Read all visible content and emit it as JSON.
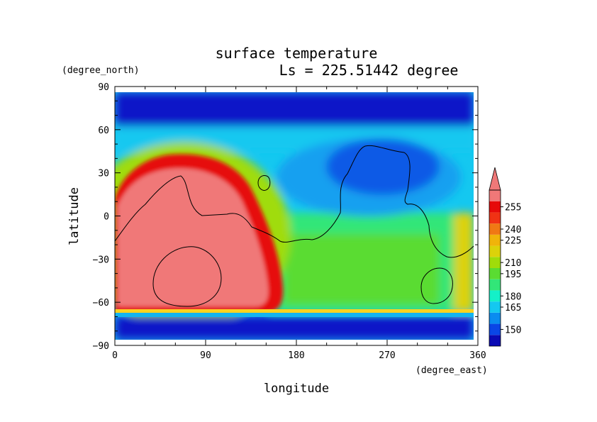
{
  "chart_data": {
    "type": "heatmap",
    "title": "surface temperature",
    "subtitle": "Ls = 225.51442 degree",
    "xlabel": "longitude",
    "ylabel": "latitude",
    "xunits": "(degree_east)",
    "yunits": "(degree_north)",
    "xlim": [
      0,
      360
    ],
    "ylim": [
      -90,
      90
    ],
    "x_ticks": [
      0,
      90,
      180,
      270,
      360
    ],
    "y_ticks": [
      -90,
      -60,
      -30,
      0,
      30,
      60,
      90
    ],
    "colorbar": {
      "levels": [
        150,
        165,
        180,
        195,
        210,
        225,
        240,
        255
      ],
      "colors": [
        "#0a0ab4",
        "#0a46e6",
        "#0a8cf0",
        "#14c8f0",
        "#14f0c8",
        "#32e678",
        "#5adc32",
        "#a0dc0a",
        "#dcd20a",
        "#f0b40a",
        "#f07814",
        "#f03214",
        "#e60a0a",
        "#f07878"
      ],
      "extend": "max"
    },
    "field_points": [
      {
        "lon": 70,
        "lat": -30,
        "value": 260
      },
      {
        "lon": 130,
        "lat": -20,
        "value": 245
      },
      {
        "lon": 15,
        "lat": 10,
        "value": 245
      },
      {
        "lon": 200,
        "lat": -40,
        "value": 200
      },
      {
        "lon": 280,
        "lat": -30,
        "value": 200
      },
      {
        "lon": 230,
        "lat": 10,
        "value": 175
      },
      {
        "lon": 275,
        "lat": 35,
        "value": 150
      },
      {
        "lon": 180,
        "lat": 80,
        "value": 145
      },
      {
        "lon": 180,
        "lat": -80,
        "value": 145
      },
      {
        "lon": 355,
        "lat": -45,
        "value": 240
      }
    ]
  }
}
